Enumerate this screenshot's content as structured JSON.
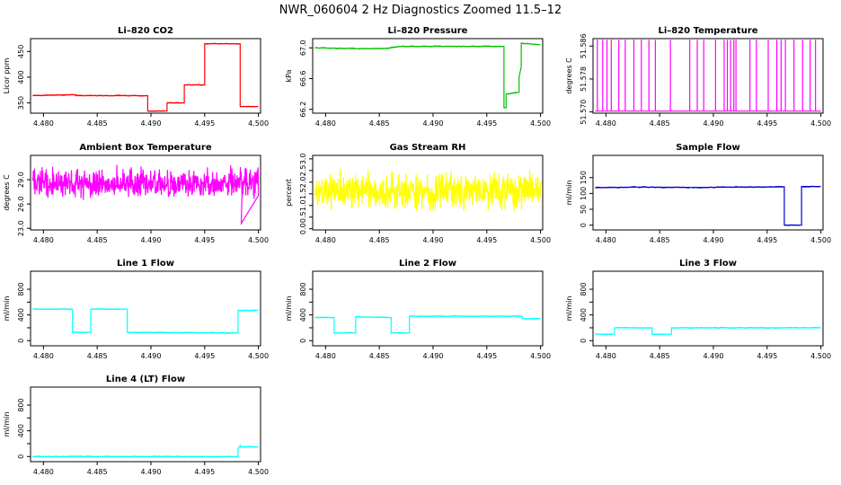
{
  "figure": {
    "title": "NWR_060604  2 Hz Diagnostics Zoomed 11.5–12"
  },
  "chart_data": [
    {
      "id": "co2",
      "type": "line",
      "title": "Li–820 CO2",
      "xlabel": "",
      "ylabel": "Licor ppm",
      "xlim": [
        4.4788,
        4.5002
      ],
      "ylim": [
        330,
        475
      ],
      "xticks": [
        4.48,
        4.485,
        4.49,
        4.495,
        4.5
      ],
      "xtick_labels": [
        "4.480",
        "4.485",
        "4.490",
        "4.495",
        "4.500"
      ],
      "yticks": [
        350,
        400,
        450
      ],
      "ytick_labels": [
        "350",
        "400",
        "450"
      ],
      "series": [
        {
          "color": "#ff0000",
          "x": [
            4.479,
            4.483,
            4.483,
            4.4897,
            4.4897,
            4.4915,
            4.4915,
            4.4931,
            4.4931,
            4.495,
            4.495,
            4.4983,
            4.4983,
            4.5
          ],
          "y": [
            364,
            366,
            364,
            364,
            334,
            334,
            350,
            350,
            385,
            385,
            465,
            465,
            343,
            343
          ]
        }
      ]
    },
    {
      "id": "pressure",
      "type": "line",
      "title": "Li–820 Pressure",
      "xlabel": "",
      "ylabel": "kPa",
      "xlim": [
        4.4788,
        4.5002
      ],
      "ylim": [
        66.15,
        67.12
      ],
      "xticks": [
        4.48,
        4.485,
        4.49,
        4.495,
        4.5
      ],
      "xtick_labels": [
        "4.480",
        "4.485",
        "4.490",
        "4.495",
        "4.500"
      ],
      "yticks": [
        66.2,
        66.6,
        67.0
      ],
      "ytick_labels": [
        "66.2",
        "66.6",
        "67.0"
      ],
      "series": [
        {
          "color": "#00c000",
          "x": [
            4.479,
            4.483,
            4.4855,
            4.487,
            4.4966,
            4.4966,
            4.4968,
            4.4968,
            4.498,
            4.498,
            4.4982,
            4.4982,
            4.5
          ],
          "y": [
            67.0,
            66.99,
            66.99,
            67.02,
            67.02,
            66.22,
            66.22,
            66.4,
            66.42,
            66.62,
            66.75,
            67.06,
            67.04
          ]
        }
      ]
    },
    {
      "id": "licor-temp",
      "type": "line",
      "title": "Li–820 Temperature",
      "xlabel": "",
      "ylabel": "degrees C",
      "xlim": [
        4.4788,
        4.5002
      ],
      "ylim": [
        51.5697,
        51.5878
      ],
      "xticks": [
        4.48,
        4.485,
        4.49,
        4.495,
        4.5
      ],
      "xtick_labels": [
        "4.480",
        "4.485",
        "4.490",
        "4.495",
        "4.500"
      ],
      "yticks": [
        51.57,
        51.578,
        51.586
      ],
      "ytick_labels": [
        "51.570",
        "51.578",
        "51.586"
      ],
      "baseline": 51.5702,
      "spike_high": 51.5875,
      "spikes": [
        4.4792,
        4.4797,
        4.4801,
        4.4805,
        4.4812,
        4.4818,
        4.4826,
        4.4833,
        4.484,
        4.4846,
        4.486,
        4.4878,
        4.4885,
        4.4891,
        4.4902,
        4.491,
        4.4913,
        4.4916,
        4.4919,
        4.4921,
        4.4934,
        4.494,
        4.4951,
        4.4959,
        4.4963,
        4.4967,
        4.4975,
        4.4983,
        4.499,
        4.4995
      ],
      "series": [
        {
          "color": "#ff00ff"
        }
      ]
    },
    {
      "id": "box-temp",
      "type": "line",
      "title": "Ambient Box Temperature",
      "xlabel": "",
      "ylabel": "degrees C",
      "xlim": [
        4.4788,
        4.5002
      ],
      "ylim": [
        22.8,
        32.0
      ],
      "xticks": [
        4.48,
        4.485,
        4.49,
        4.495,
        4.5
      ],
      "xtick_labels": [
        "4.480",
        "4.485",
        "4.490",
        "4.495",
        "4.500"
      ],
      "yticks": [
        23.0,
        26.0,
        29.0
      ],
      "ytick_labels": [
        "23.0",
        "26.0",
        "29.0"
      ],
      "noise": {
        "mean": 28.6,
        "amp": 1.3,
        "dx": 3e-05
      },
      "series": [
        {
          "color": "#ff00ff"
        }
      ]
    },
    {
      "id": "rh",
      "type": "line",
      "title": "Gas Stream RH",
      "xlabel": "",
      "ylabel": "percent",
      "xlim": [
        4.4788,
        4.5002
      ],
      "ylim": [
        -0.05,
        3.15
      ],
      "xticks": [
        4.48,
        4.485,
        4.49,
        4.495,
        4.5
      ],
      "xtick_labels": [
        "4.480",
        "4.485",
        "4.490",
        "4.495",
        "4.500"
      ],
      "yticks": [
        0.0,
        0.5,
        1.0,
        1.5,
        2.0,
        2.5,
        3.0
      ],
      "ytick_labels": [
        "0.0",
        "0.5",
        "1.0",
        "1.5",
        "2.0",
        "2.5",
        "3.0"
      ],
      "noise": {
        "mean": 1.6,
        "amp": 0.55,
        "dx": 3e-05
      },
      "series": [
        {
          "color": "#ffff00"
        }
      ]
    },
    {
      "id": "sample-flow",
      "type": "line",
      "title": "Sample Flow",
      "xlabel": "",
      "ylabel": "ml/min",
      "xlim": [
        4.4788,
        4.5002
      ],
      "ylim": [
        -15,
        220
      ],
      "xticks": [
        4.48,
        4.485,
        4.49,
        4.495,
        4.5
      ],
      "xtick_labels": [
        "4.480",
        "4.485",
        "4.490",
        "4.495",
        "4.500"
      ],
      "yticks": [
        0,
        50,
        100,
        150
      ],
      "ytick_labels": [
        "0",
        "50",
        "100",
        "150"
      ],
      "series": [
        {
          "color": "#0000cc",
          "x": [
            4.479,
            4.483,
            4.488,
            4.4966,
            4.4966,
            4.4982,
            4.4982,
            4.5
          ],
          "y": [
            118,
            120,
            119,
            121,
            0,
            0,
            122,
            122
          ]
        }
      ]
    },
    {
      "id": "line1-flow",
      "type": "line",
      "title": "Line 1 Flow",
      "xlabel": "",
      "ylabel": "ml/min",
      "xlim": [
        4.4788,
        4.5002
      ],
      "ylim": [
        -80,
        1080
      ],
      "xticks": [
        4.48,
        4.485,
        4.49,
        4.495,
        4.5
      ],
      "xtick_labels": [
        "4.480",
        "4.485",
        "4.490",
        "4.495",
        "4.500"
      ],
      "yticks": [
        0,
        200,
        400,
        600,
        800
      ],
      "ytick_labels": [
        "0",
        "",
        "400",
        "",
        "800"
      ],
      "series": [
        {
          "color": "#00ffff",
          "x": [
            4.479,
            4.4827,
            4.4827,
            4.4844,
            4.4844,
            4.4878,
            4.4878,
            4.4981,
            4.4981,
            4.5
          ],
          "y": [
            490,
            490,
            130,
            130,
            490,
            490,
            130,
            120,
            470,
            470
          ]
        }
      ]
    },
    {
      "id": "line2-flow",
      "type": "line",
      "title": "Line 2 Flow",
      "xlabel": "",
      "ylabel": "ml/min",
      "xlim": [
        4.4788,
        4.5002
      ],
      "ylim": [
        -80,
        1080
      ],
      "xticks": [
        4.48,
        4.485,
        4.49,
        4.495,
        4.5
      ],
      "xtick_labels": [
        "4.480",
        "4.485",
        "4.490",
        "4.495",
        "4.500"
      ],
      "yticks": [
        0,
        200,
        400,
        600,
        800
      ],
      "ytick_labels": [
        "0",
        "",
        "400",
        "",
        "800"
      ],
      "series": [
        {
          "color": "#00ffff",
          "x": [
            4.479,
            4.4808,
            4.4808,
            4.4828,
            4.4828,
            4.4861,
            4.4861,
            4.4878,
            4.4878,
            4.4983,
            4.4983,
            4.5
          ],
          "y": [
            360,
            360,
            120,
            120,
            370,
            360,
            120,
            120,
            380,
            380,
            340,
            340
          ]
        }
      ]
    },
    {
      "id": "line3-flow",
      "type": "line",
      "title": "Line 3 Flow",
      "xlabel": "",
      "ylabel": "ml/min",
      "xlim": [
        4.4788,
        4.5002
      ],
      "ylim": [
        -80,
        1080
      ],
      "xticks": [
        4.48,
        4.485,
        4.49,
        4.495,
        4.5
      ],
      "xtick_labels": [
        "4.480",
        "4.485",
        "4.490",
        "4.495",
        "4.500"
      ],
      "yticks": [
        0,
        200,
        400,
        600,
        800
      ],
      "ytick_labels": [
        "0",
        "",
        "400",
        "",
        "800"
      ],
      "series": [
        {
          "color": "#00ffff",
          "x": [
            4.479,
            4.4808,
            4.4808,
            4.4843,
            4.4843,
            4.4861,
            4.4861,
            4.5
          ],
          "y": [
            100,
            100,
            200,
            200,
            100,
            100,
            200,
            200
          ]
        }
      ]
    },
    {
      "id": "line4-flow",
      "type": "line",
      "title": "Line 4 (LT) Flow",
      "xlabel": "",
      "ylabel": "ml/min",
      "xlim": [
        4.4788,
        4.5002
      ],
      "ylim": [
        -80,
        1080
      ],
      "xticks": [
        4.48,
        4.485,
        4.49,
        4.495,
        4.5
      ],
      "xtick_labels": [
        "4.480",
        "4.485",
        "4.490",
        "4.495",
        "4.500"
      ],
      "yticks": [
        0,
        200,
        400,
        600,
        800
      ],
      "ytick_labels": [
        "0",
        "",
        "400",
        "",
        "800"
      ],
      "series": [
        {
          "color": "#00ffff",
          "x": [
            4.479,
            4.4981,
            4.4981,
            4.4983,
            4.4983,
            4.5
          ],
          "y": [
            0,
            0,
            120,
            170,
            150,
            150
          ]
        }
      ]
    }
  ]
}
